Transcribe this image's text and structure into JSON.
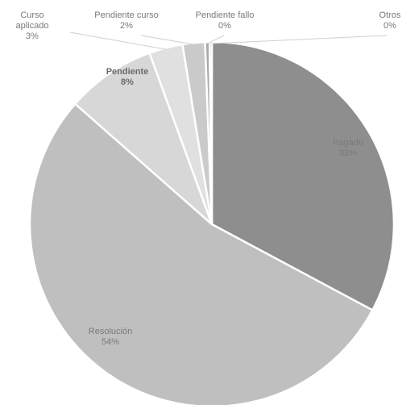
{
  "chart_data": {
    "type": "pie",
    "colors_note": "grayscale",
    "slices": [
      {
        "name": "Pagado",
        "percent_label": "33%",
        "value": 33,
        "color": "#8e8e8e",
        "label_lines": [
          "Pagado"
        ]
      },
      {
        "name": "Resolución",
        "percent_label": "54%",
        "value": 54,
        "color": "#bfbfbf",
        "label_lines": [
          "Resolución"
        ]
      },
      {
        "name": "Pendiente",
        "percent_label": "8%",
        "value": 8,
        "color": "#d7d7d7",
        "label_lines": [
          "Pendiente"
        ]
      },
      {
        "name": "Curso aplicado",
        "percent_label": "3%",
        "value": 3,
        "color": "#e0e0e0",
        "label_lines": [
          "Curso",
          "aplicado"
        ]
      },
      {
        "name": "Pendiente curso",
        "percent_label": "2%",
        "value": 2,
        "color": "#cacaca",
        "label_lines": [
          "Pendiente curso"
        ]
      },
      {
        "name": "Pendiente fallo",
        "percent_label": "0%",
        "value": 0.4,
        "color": "#a9a9a9",
        "label_lines": [
          "Pendiente fallo"
        ]
      },
      {
        "name": "Otros",
        "percent_label": "0%",
        "value": 0.2,
        "color": "#9a9a9a",
        "label_lines": [
          "Otros"
        ]
      }
    ]
  }
}
